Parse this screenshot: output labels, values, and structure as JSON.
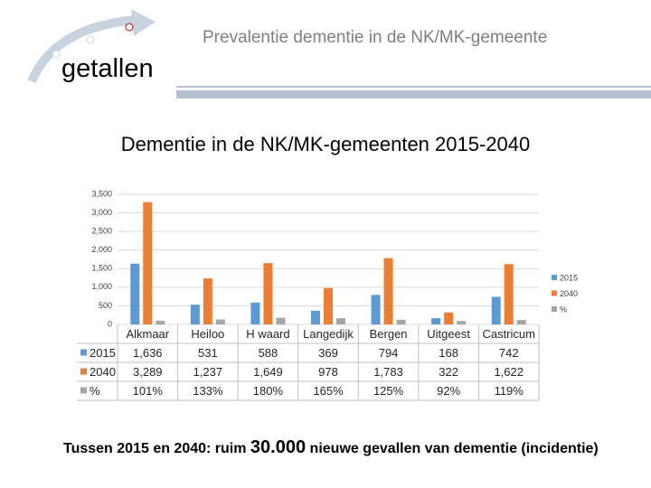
{
  "slide": {
    "header_title": "Prevalentie dementie in de NK/MK-gemeente",
    "section": "getallen",
    "footer": {
      "before": "Tussen 2015 en 2040: ruim",
      "number": "30.000",
      "after": "nieuwe gevallen van dementie (incidentie)"
    }
  },
  "chart_data": {
    "type": "bar",
    "title": "Dementie in de NK/MK-gemeenten 2015-2040",
    "categories": [
      "Alkmaar",
      "Heiloo",
      "H waard",
      "Langedijk",
      "Bergen",
      "Uitgeest",
      "Castricum"
    ],
    "series": [
      {
        "name": "2015",
        "color": "#5b9bd5",
        "values": [
          1636,
          531,
          588,
          369,
          794,
          168,
          742
        ],
        "value_labels": [
          "1,636",
          "531",
          "588",
          "369",
          "794",
          "168",
          "742"
        ]
      },
      {
        "name": "2040",
        "color": "#ed7d31",
        "values": [
          3289,
          1237,
          1649,
          978,
          1783,
          322,
          1622
        ],
        "value_labels": [
          "3,289",
          "1,237",
          "1,649",
          "978",
          "1,783",
          "322",
          "1,622"
        ]
      },
      {
        "name": "%",
        "color": "#a5a5a5",
        "values": [
          101,
          133,
          180,
          165,
          125,
          92,
          119
        ],
        "value_labels": [
          "101%",
          "133%",
          "180%",
          "165%",
          "125%",
          "92%",
          "119%"
        ]
      }
    ],
    "ylim": [
      0,
      3500
    ],
    "yticks": [
      0,
      500,
      {
        "value": 1000,
        "label": "1,000"
      },
      {
        "value": 1500,
        "label": "1,500"
      },
      {
        "value": 2000,
        "label": "2,000"
      },
      {
        "value": 2500,
        "label": "2,500"
      },
      {
        "value": 3000,
        "label": "3,000"
      },
      {
        "value": 3500,
        "label": "3,500"
      }
    ],
    "grid": true,
    "legend": "right",
    "data_table": true
  }
}
